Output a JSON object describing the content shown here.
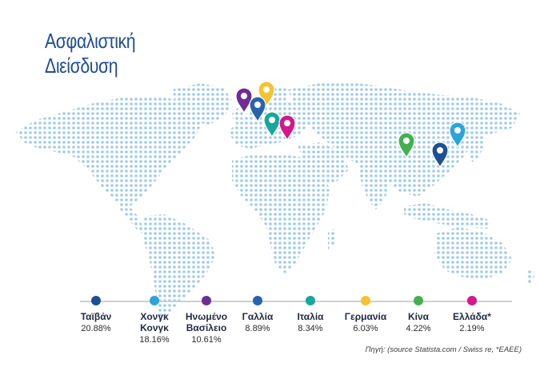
{
  "title_lines": [
    "Ασφαλιστική",
    "Διείσδυση"
  ],
  "source": "Πηγή: (source Statista.com / Swiss re, *ΕΑΕΕ)",
  "colors": {
    "map_dots": "#9fcbec",
    "axis_line": "#cfcfcf",
    "title": "#1b4f9a"
  },
  "chart_data": {
    "type": "table",
    "title": "Ασφαλιστική Διείσδυση",
    "categories": [
      "Ταϊβάν",
      "Χονγκ Κονγκ",
      "Ηνωμένο Βασίλειο",
      "Γαλλία",
      "Ιταλία",
      "Γερμανία",
      "Κίνα",
      "Ελλάδα*"
    ],
    "values": [
      20.88,
      18.16,
      10.61,
      8.89,
      8.34,
      6.03,
      4.22,
      2.19
    ],
    "items": [
      {
        "name": "Ταϊβάν",
        "value": 20.88,
        "label": "20.88%",
        "color": "#1d4f95",
        "marker_icon": "map-pin-icon"
      },
      {
        "name": "Χονγκ\nΚονγκ",
        "value": 18.16,
        "label": "18.16%",
        "color": "#2aa4dc",
        "marker_icon": "map-pin-icon"
      },
      {
        "name": "Ηνωμένο\nΒασίλειο",
        "value": 10.61,
        "label": "10.61%",
        "color": "#6f2c91",
        "marker_icon": "map-pin-icon"
      },
      {
        "name": "Γαλλία",
        "value": 8.89,
        "label": "8.89%",
        "color": "#2664ad",
        "marker_icon": "map-pin-icon"
      },
      {
        "name": "Ιταλία",
        "value": 8.34,
        "label": "8.34%",
        "color": "#16a99b",
        "marker_icon": "map-pin-icon"
      },
      {
        "name": "Γερμανία",
        "value": 6.03,
        "label": "6.03%",
        "color": "#f6c330",
        "marker_icon": "map-pin-icon"
      },
      {
        "name": "Κίνα",
        "value": 4.22,
        "label": "4.22%",
        "color": "#45b04e",
        "marker_icon": "map-pin-icon"
      },
      {
        "name": "Ελλάδα*",
        "value": 2.19,
        "label": "2.19%",
        "color": "#d6168b",
        "marker_icon": "map-pin-icon"
      }
    ]
  }
}
